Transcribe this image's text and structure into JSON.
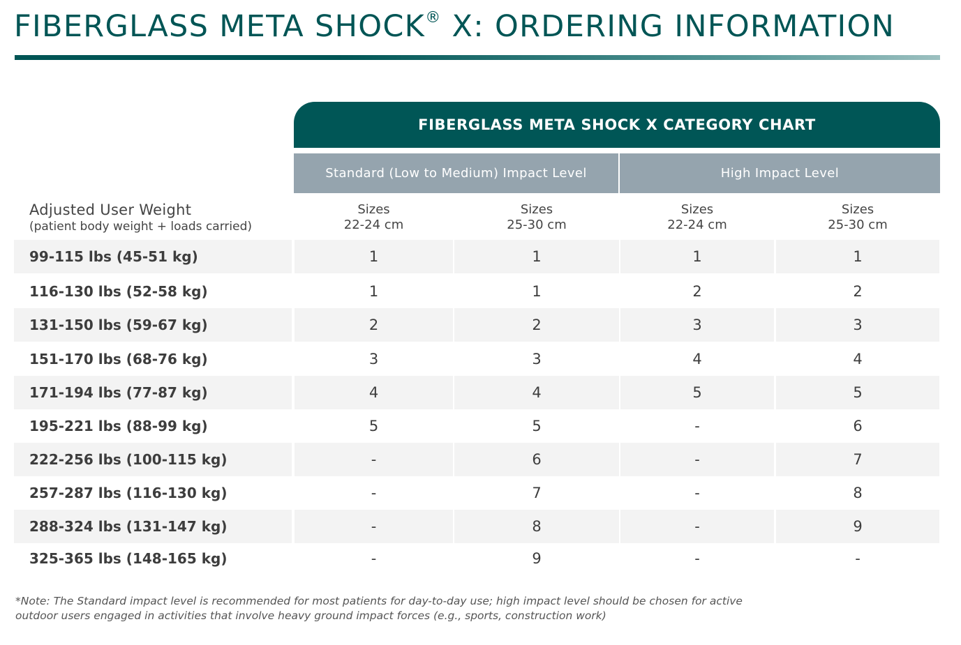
{
  "title": {
    "before_mark": "FIBERGLASS META SHOCK",
    "mark": "®",
    "after_mark": " X: ORDERING INFORMATION"
  },
  "chart_header": "FIBERGLASS META SHOCK X CATEGORY CHART",
  "impact_levels": {
    "standard": "Standard (Low to Medium) Impact Level",
    "high": "High Impact Level"
  },
  "weight_header": {
    "main": "Adjusted User Weight",
    "sub": "(patient body weight + loads carried)"
  },
  "size_columns": [
    {
      "line1": "Sizes",
      "line2": "22-24 cm"
    },
    {
      "line1": "Sizes",
      "line2": "25-30 cm"
    },
    {
      "line1": "Sizes",
      "line2": "22-24 cm"
    },
    {
      "line1": "Sizes",
      "line2": "25-30 cm"
    }
  ],
  "rows": [
    {
      "weight": "99-115 lbs (45-51 kg)",
      "values": [
        "1",
        "1",
        "1",
        "1"
      ]
    },
    {
      "weight": "116-130 lbs (52-58 kg)",
      "values": [
        "1",
        "1",
        "2",
        "2"
      ]
    },
    {
      "weight": "131-150 lbs (59-67 kg)",
      "values": [
        "2",
        "2",
        "3",
        "3"
      ]
    },
    {
      "weight": "151-170 lbs (68-76 kg)",
      "values": [
        "3",
        "3",
        "4",
        "4"
      ]
    },
    {
      "weight": "171-194 lbs (77-87 kg)",
      "values": [
        "4",
        "4",
        "5",
        "5"
      ]
    },
    {
      "weight": "195-221 lbs (88-99 kg)",
      "values": [
        "5",
        "5",
        "-",
        "6"
      ]
    },
    {
      "weight": "222-256 lbs (100-115 kg)",
      "values": [
        "-",
        "6",
        "-",
        "7"
      ]
    },
    {
      "weight": "257-287 lbs (116-130 kg)",
      "values": [
        "-",
        "7",
        "-",
        "8"
      ]
    },
    {
      "weight": "288-324 lbs (131-147 kg)",
      "values": [
        "-",
        "8",
        "-",
        "9"
      ]
    },
    {
      "weight": "325-365 lbs (148-165 kg)",
      "values": [
        "-",
        "9",
        "-",
        "-"
      ]
    }
  ],
  "note": {
    "line1": "*Note: The Standard impact level is recommended for most patients for day-to-day use; high impact level should be chosen for active",
    "line2": "outdoor users engaged in activities that involve heavy ground impact forces (e.g., sports, construction work)"
  },
  "colors": {
    "brand": "#005656",
    "level_header": "#95a4ae",
    "row_shade": "#f3f3f3"
  }
}
